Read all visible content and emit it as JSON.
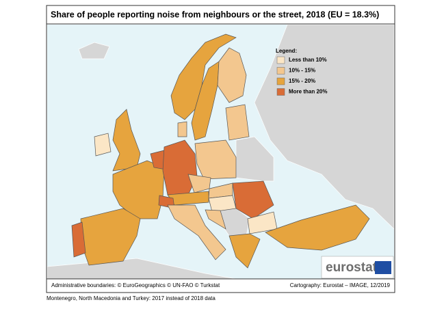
{
  "title": "Share of people reporting noise from neighbours or the street, 2018 (EU = 18.3%)",
  "legend": {
    "title": "Legend:",
    "items": [
      {
        "label": "Less than 10%",
        "color": "#fbe6c6"
      },
      {
        "label": "10% - 15%",
        "color": "#f3c78f"
      },
      {
        "label": "15% - 20%",
        "color": "#e6a43e"
      },
      {
        "label": "More than 20%",
        "color": "#d96c36"
      }
    ]
  },
  "logo": "eurostat",
  "footer": {
    "left": "Administrative boundaries: © EuroGeographics © UN-FAO © Turkstat",
    "right": "Cartography: Eurostat – IMAGE, 12/2019"
  },
  "note": "Montenegro, North Macedonia and Turkey: 2017 instead of 2018 data"
}
